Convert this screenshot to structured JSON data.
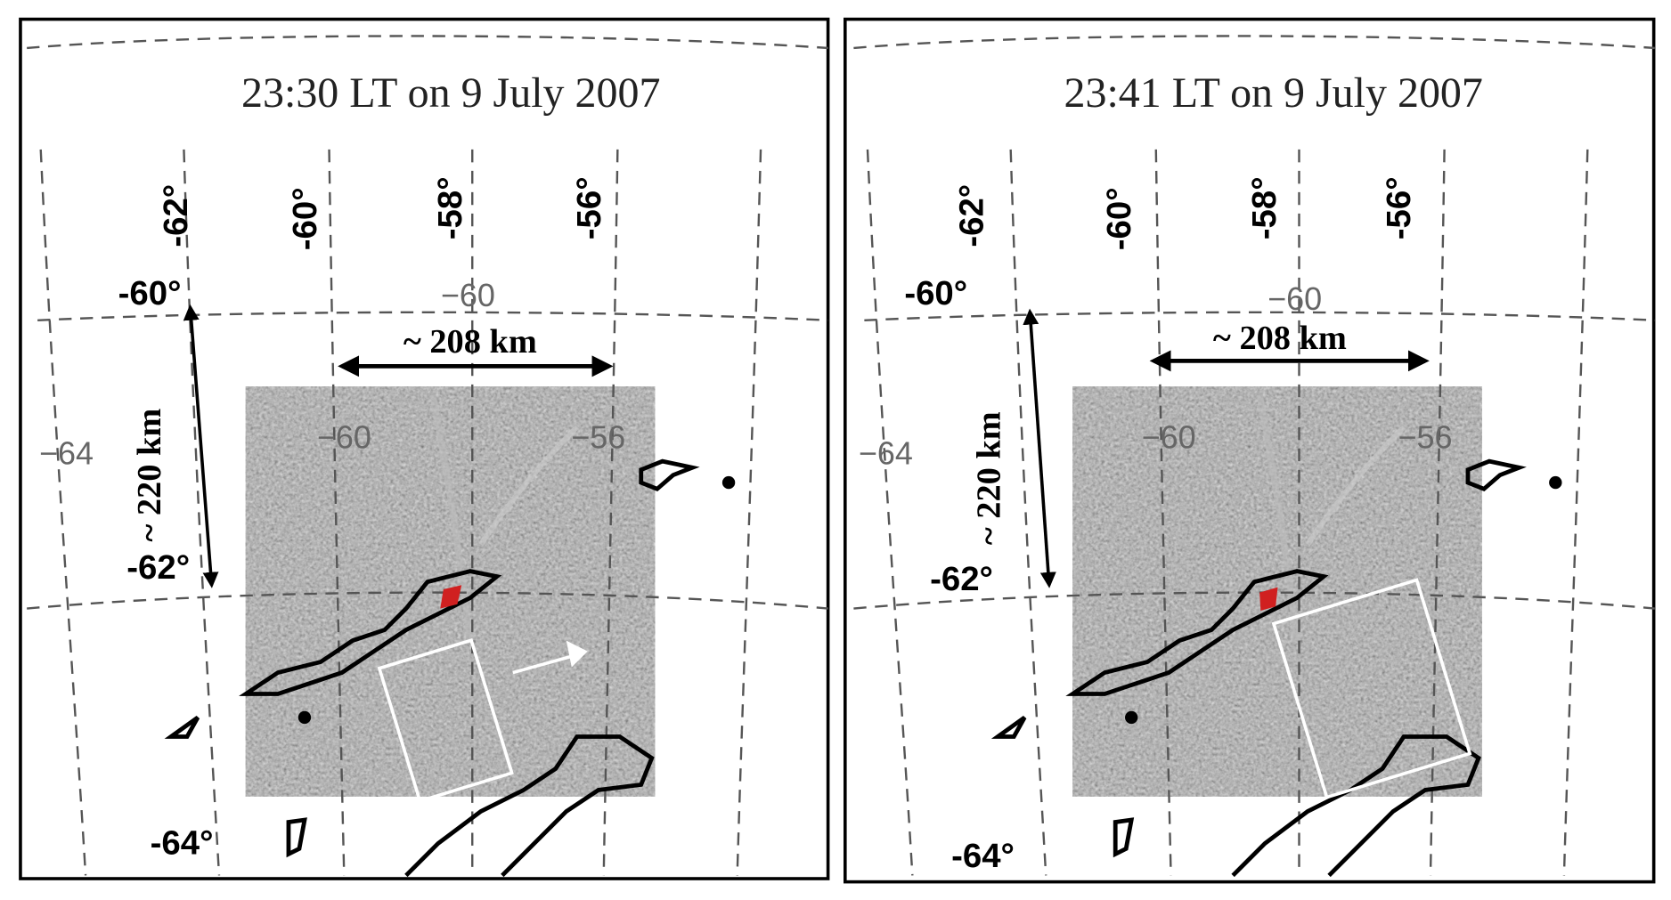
{
  "panels": [
    {
      "title": "23:30 LT on 9 July 2007",
      "lon_labels": [
        "-62°",
        "-60°",
        "-58°",
        "-56°"
      ],
      "lat_labels": [
        "-60°",
        "-62°",
        "-64°"
      ],
      "grid_labels": [
        "−60",
        "−64",
        "−60",
        "−56"
      ],
      "width_label": "~ 208 km",
      "height_label": "~ 220 km"
    },
    {
      "title": "23:41 LT on 9 July 2007",
      "lon_labels": [
        "-62°",
        "-60°",
        "-58°",
        "-56°"
      ],
      "lat_labels": [
        "-60°",
        "-62°",
        "-64°"
      ],
      "grid_labels": [
        "−60",
        "−64",
        "−60",
        "−56"
      ],
      "width_label": "~ 208 km",
      "height_label": "~ 220 km"
    }
  ]
}
